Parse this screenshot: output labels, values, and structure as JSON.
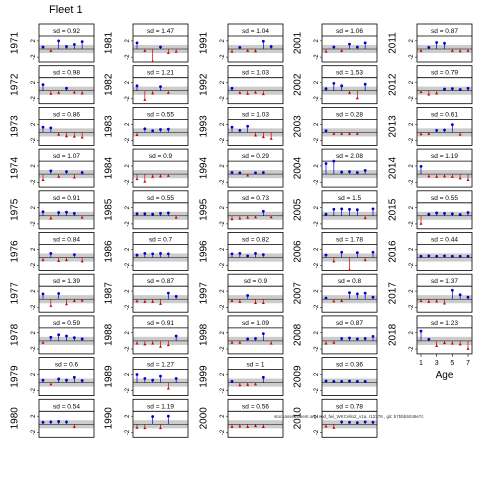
{
  "title": "Fleet 1",
  "footer": "stockassessment.org, cod_fwi_WKCello2_v1a, r12276 , git: b7bbb5048e7c",
  "chart_data": {
    "type": "residual-panels",
    "xlabel": "Age",
    "x_ticks": [
      1,
      3,
      5,
      7
    ],
    "y_ticks": [
      "2",
      "-2"
    ],
    "ylim": [
      -3.2,
      3.2
    ],
    "band": [
      -1,
      1
    ],
    "colors": {
      "positive": "#0000cc",
      "negative": "#cc0000",
      "band": "#cccccc"
    },
    "panels": [
      {
        "label": "1971",
        "sd": "sd = 0.92",
        "values": [
          0.5,
          -0.4,
          2.0,
          0.6,
          1.1,
          1.8
        ]
      },
      {
        "label": "1972",
        "sd": "sd = 0.98",
        "values": [
          1.5,
          -0.7,
          -0.5,
          0.6,
          -0.4,
          -0.6
        ]
      },
      {
        "label": "1973",
        "sd": "sd = 0.86",
        "values": [
          1.3,
          1.1,
          -0.5,
          -0.9,
          -1.0,
          -1.2
        ]
      },
      {
        "label": "1974",
        "sd": "sd = 1.07",
        "values": [
          -1.4,
          0.8,
          -0.6,
          0.6,
          -0.8,
          0.4
        ]
      },
      {
        "label": "1975",
        "sd": "sd = 0.91",
        "values": [
          1.0,
          -0.6,
          0.8,
          0.9,
          0.6,
          -0.4
        ]
      },
      {
        "label": "1976",
        "sd": "sd = 0.84",
        "values": [
          -0.6,
          1.0,
          -0.8,
          -0.6,
          0.7,
          -0.9
        ]
      },
      {
        "label": "1977",
        "sd": "sd = 1.39",
        "values": [
          1.3,
          -1.6,
          1.4,
          -1.2,
          -0.4,
          -0.3
        ]
      },
      {
        "label": "1978",
        "sd": "sd = 0.59",
        "values": [
          -0.4,
          0.9,
          1.5,
          1.2,
          0.8,
          0.5
        ]
      },
      {
        "label": "1979",
        "sd": "sd = 0.6",
        "values": [
          0.6,
          -0.4,
          0.9,
          0.6,
          1.3,
          0.5
        ]
      },
      {
        "label": "1980",
        "sd": "sd = 0.54",
        "values": [
          0.5,
          0.6,
          0.7,
          0.6,
          -0.6
        ]
      },
      {
        "label": "1981",
        "sd": "sd = 1.47",
        "values": [
          1.5,
          -0.4,
          -3.0,
          0.5,
          -0.9,
          -0.6
        ]
      },
      {
        "label": "1982",
        "sd": "sd = 1.21",
        "values": [
          1.2,
          -2.2,
          -0.6,
          1.0,
          -0.5
        ]
      },
      {
        "label": "1983",
        "sd": "sd = 0.55",
        "values": [
          -0.6,
          0.9,
          0.4,
          0.7,
          0.8
        ]
      },
      {
        "label": "1984",
        "sd": "sd = 0.9",
        "values": [
          -1.2,
          -1.8,
          -0.6,
          -0.5,
          -0.4
        ]
      },
      {
        "label": "1985",
        "sd": "sd = 0.55",
        "values": [
          0.5,
          0.5,
          0.4,
          0.6,
          0.7,
          -0.4
        ]
      },
      {
        "label": "1986",
        "sd": "sd = 0.7",
        "values": [
          0.6,
          1.0,
          0.9,
          1.0,
          0.9
        ]
      },
      {
        "label": "1987",
        "sd": "sd = 0.87",
        "values": [
          -0.5,
          -0.6,
          -0.6,
          -1.1,
          1.5,
          0.7
        ]
      },
      {
        "label": "1988",
        "sd": "sd = 0.91",
        "values": [
          -0.6,
          -0.8,
          -0.6,
          -1.4,
          -1.0,
          1.2
        ]
      },
      {
        "label": "1989",
        "sd": "sd = 1.27",
        "values": [
          2.0,
          1.0,
          0.6,
          1.6,
          -1.4,
          1.0
        ]
      },
      {
        "label": "1990",
        "sd": "sd = 1.19",
        "values": [
          -0.8,
          -0.9,
          1.9,
          -0.9,
          2.0
        ]
      },
      {
        "label": "1991",
        "sd": "sd = 1.04",
        "values": [
          -0.6,
          0.4,
          -0.4,
          -0.5,
          1.9,
          0.6
        ]
      },
      {
        "label": "1992",
        "sd": "sd = 1.03",
        "values": [
          0.6,
          -0.5,
          -0.7,
          -0.4,
          -0.8
        ]
      },
      {
        "label": "1993",
        "sd": "sd = 1.03",
        "values": [
          1.3,
          0.5,
          1.5,
          -0.7,
          -1.1,
          -1.5
        ]
      },
      {
        "label": "1994",
        "sd": "sd = 0.29",
        "values": [
          0.4,
          0.3,
          -0.3,
          0.3,
          0.4
        ]
      },
      {
        "label": "1995",
        "sd": "sd = 0.73",
        "values": [
          -0.8,
          -0.6,
          -0.4,
          -0.3,
          1.1,
          -0.3
        ]
      },
      {
        "label": "1996",
        "sd": "sd = 0.82",
        "values": [
          0.9,
          1.0,
          0.4,
          1.0,
          0.7
        ]
      },
      {
        "label": "1997",
        "sd": "sd = 0.9",
        "values": [
          -0.4,
          -0.6,
          0.9,
          -0.9,
          -0.9
        ]
      },
      {
        "label": "1998",
        "sd": "sd = 1.09",
        "values": [
          -0.4,
          -0.4,
          0.5,
          0.6,
          1.8,
          -0.6
        ]
      },
      {
        "label": "1999",
        "sd": "sd = 1",
        "values": [
          0.3,
          -0.6,
          -0.5,
          -0.4,
          1.3
        ]
      },
      {
        "label": "2000",
        "sd": "sd = 0.56",
        "values": [
          -0.6,
          -0.5,
          -0.6,
          -0.4,
          -0.6
        ]
      },
      {
        "label": "2001",
        "sd": "sd = 1.06",
        "values": [
          -0.6,
          0.5,
          -0.4,
          1.2,
          0.5,
          1.5
        ]
      },
      {
        "label": "2002",
        "sd": "sd = 1.53",
        "values": [
          0.5,
          1.8,
          1.2,
          -0.5,
          -1.8,
          1.6
        ]
      },
      {
        "label": "2003",
        "sd": "sd = 0.28",
        "values": [
          0.4,
          -0.3,
          -0.3,
          -0.3,
          -0.3
        ]
      },
      {
        "label": "2004",
        "sd": "sd = 2.08",
        "values": [
          2.6,
          3.5,
          0.5,
          0.6,
          0.4,
          0.9
        ]
      },
      {
        "label": "2005",
        "sd": "sd = 1.5",
        "values": [
          0.4,
          1.6,
          1.7,
          1.6,
          1.5,
          -0.5,
          1.7
        ]
      },
      {
        "label": "2006",
        "sd": "sd = 1.78",
        "values": [
          0.6,
          -0.9,
          1.3,
          -3.0,
          1.2,
          -0.6,
          1.3
        ]
      },
      {
        "label": "2007",
        "sd": "sd = 0.8",
        "values": [
          0.3,
          -0.5,
          -0.4,
          1.6,
          1.3,
          1.5,
          0.5
        ]
      },
      {
        "label": "2008",
        "sd": "sd = 0.87",
        "values": [
          -0.6,
          -0.4,
          0.6,
          0.7,
          0.5,
          0.6,
          1.1
        ]
      },
      {
        "label": "2009",
        "sd": "sd = 0.36",
        "values": [
          0.4,
          0.3,
          0.3,
          0.4,
          0.3,
          0.3
        ]
      },
      {
        "label": "2010",
        "sd": "sd = 0.78",
        "values": [
          -0.5,
          -0.8,
          0.6,
          0.5,
          0.4,
          0.6,
          0.5
        ]
      },
      {
        "label": "2011",
        "sd": "sd = 0.87",
        "values": [
          -0.4,
          0.4,
          1.6,
          1.4,
          -0.4,
          -0.5,
          -0.4
        ]
      },
      {
        "label": "2012",
        "sd": "sd = 0.79",
        "values": [
          -0.3,
          -0.9,
          -0.6,
          0.4,
          0.5,
          0.3,
          0.6
        ]
      },
      {
        "label": "2013",
        "sd": "sd = 0.61",
        "values": [
          -0.4,
          -0.3,
          0.5,
          0.6,
          1.9,
          -0.5
        ]
      },
      {
        "label": "2014",
        "sd": "sd = 1.19",
        "values": [
          1.9,
          -0.5,
          -0.6,
          -0.5,
          -0.6,
          -1.0,
          -1.4
        ]
      },
      {
        "label": "2015",
        "sd": "sd = 0.55",
        "values": [
          -1.9,
          0.4,
          0.7,
          0.6,
          0.5,
          0.3,
          0.8
        ]
      },
      {
        "label": "2016",
        "sd": "sd = 0.44",
        "values": [
          0.3,
          0.4,
          0.3,
          0.4,
          0.3,
          0.3,
          0.3
        ]
      },
      {
        "label": "2017",
        "sd": "sd = 1.37",
        "values": [
          -0.4,
          -0.6,
          -0.5,
          -1.0,
          2.2,
          1.1,
          0.5
        ]
      },
      {
        "label": "2018",
        "sd": "sd = 1.23",
        "values": [
          2.4,
          0.4,
          -1.2,
          -0.5,
          -0.6,
          -0.8,
          -1.9
        ]
      }
    ]
  }
}
